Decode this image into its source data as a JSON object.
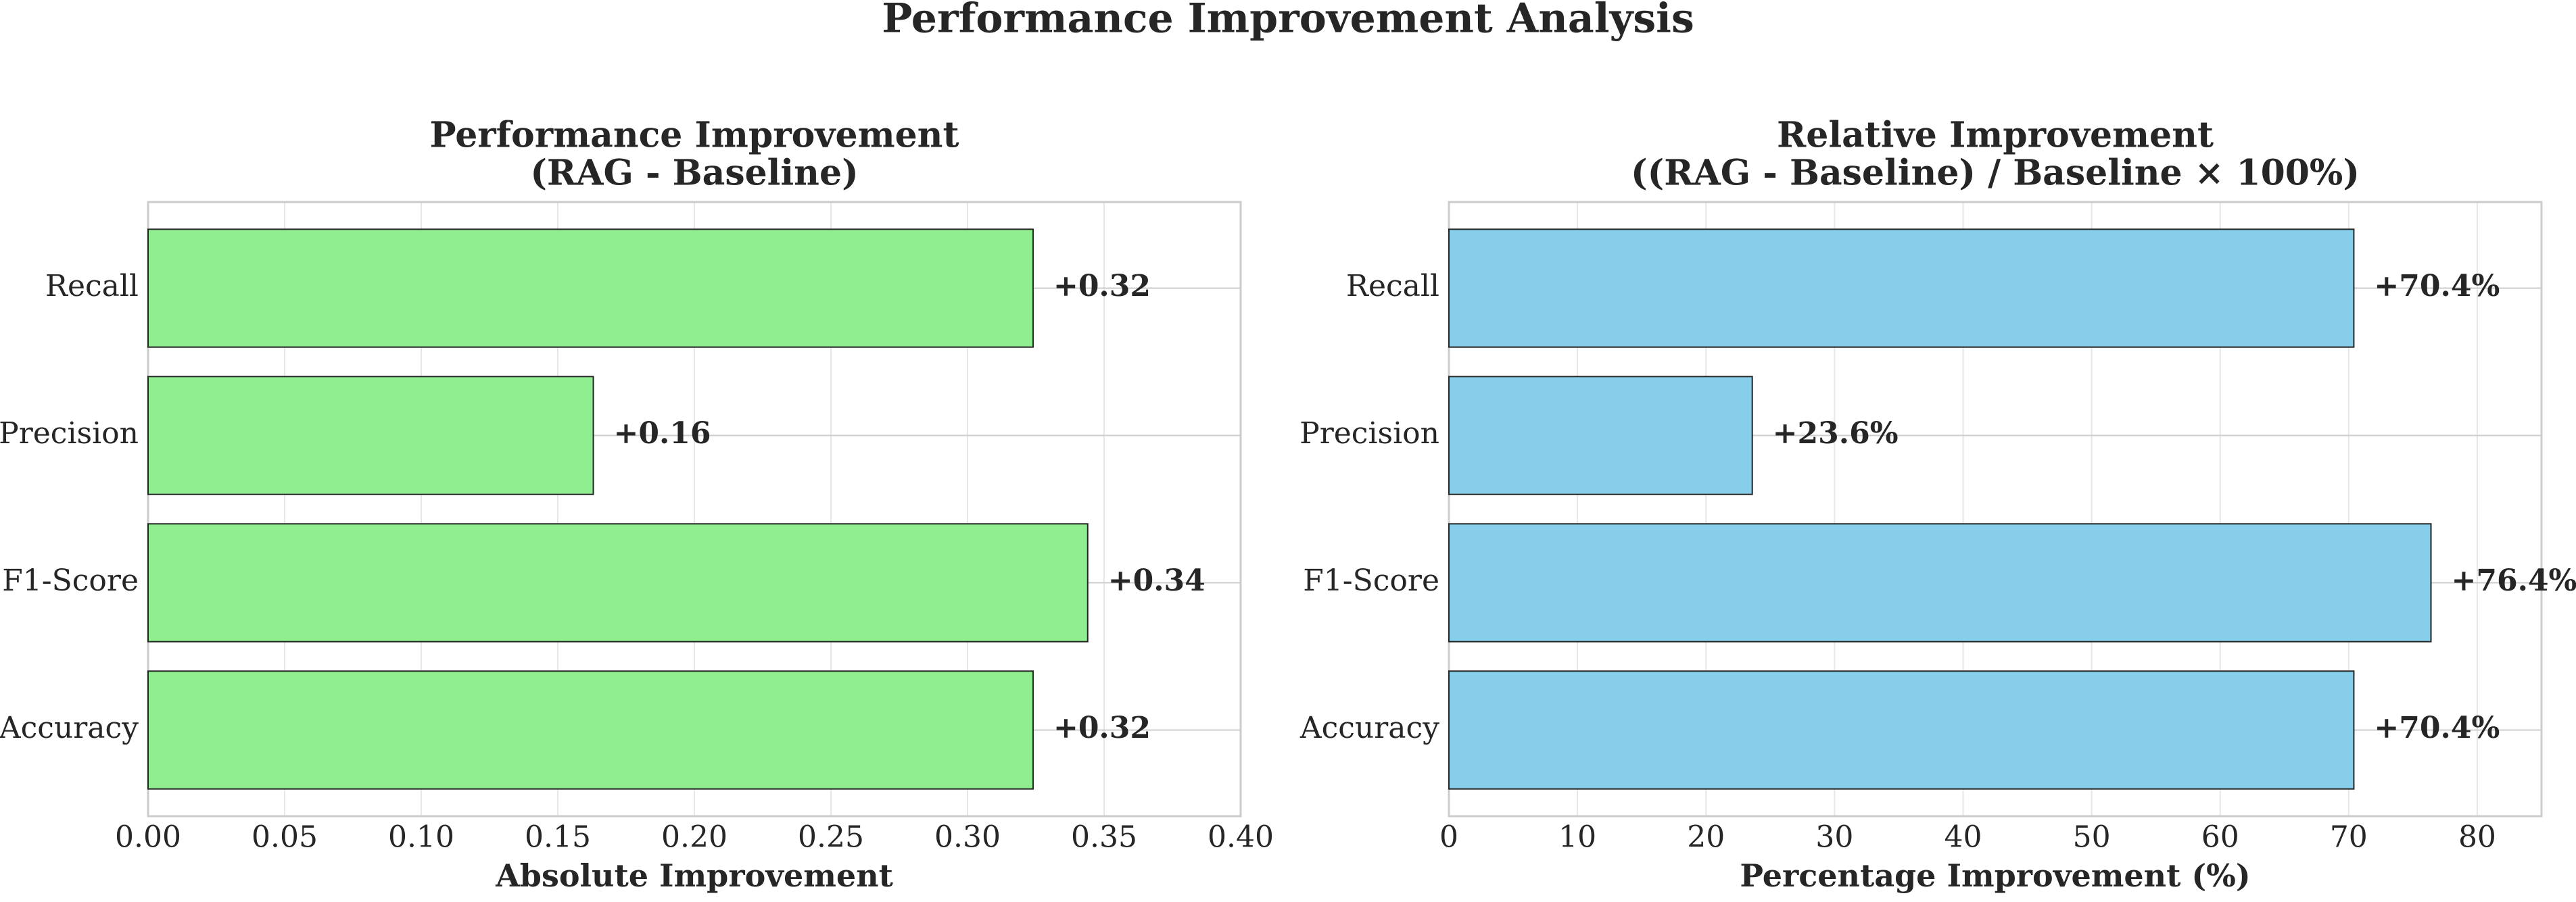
{
  "title": "Performance Improvement Analysis",
  "chart_data": [
    {
      "type": "barh",
      "title": [
        "Performance Improvement",
        "(RAG - Baseline)"
      ],
      "xlabel": "Absolute Improvement",
      "categories": [
        "Recall",
        "Precision",
        "F1-Score",
        "Accuracy"
      ],
      "values": [
        0.324,
        0.163,
        0.344,
        0.324
      ],
      "value_labels": [
        "+0.32",
        "+0.16",
        "+0.34",
        "+0.32"
      ],
      "color": "#90ee90",
      "xlim": [
        0,
        0.4
      ],
      "xticks": [
        {
          "value": 0,
          "label": "0.00"
        },
        {
          "value": 0.05,
          "label": "0.05"
        },
        {
          "value": 0.1,
          "label": "0.10"
        },
        {
          "value": 0.15,
          "label": "0.15"
        },
        {
          "value": 0.2,
          "label": "0.20"
        },
        {
          "value": 0.25,
          "label": "0.25"
        },
        {
          "value": 0.3,
          "label": "0.30"
        },
        {
          "value": 0.35,
          "label": "0.35"
        },
        {
          "value": 0.4,
          "label": "0.40"
        }
      ],
      "grid": true
    },
    {
      "type": "barh",
      "title": [
        "Relative Improvement",
        "((RAG - Baseline) / Baseline × 100%)"
      ],
      "xlabel": "Percentage Improvement (%)",
      "categories": [
        "Recall",
        "Precision",
        "F1-Score",
        "Accuracy"
      ],
      "values": [
        70.4,
        23.6,
        76.4,
        70.4
      ],
      "value_labels": [
        "+70.4%",
        "+23.6%",
        "+76.4%",
        "+70.4%"
      ],
      "color": "#87ceeb",
      "xlim": [
        0,
        85
      ],
      "xticks": [
        0,
        10,
        20,
        30,
        40,
        50,
        60,
        70,
        80
      ],
      "grid": true
    }
  ]
}
